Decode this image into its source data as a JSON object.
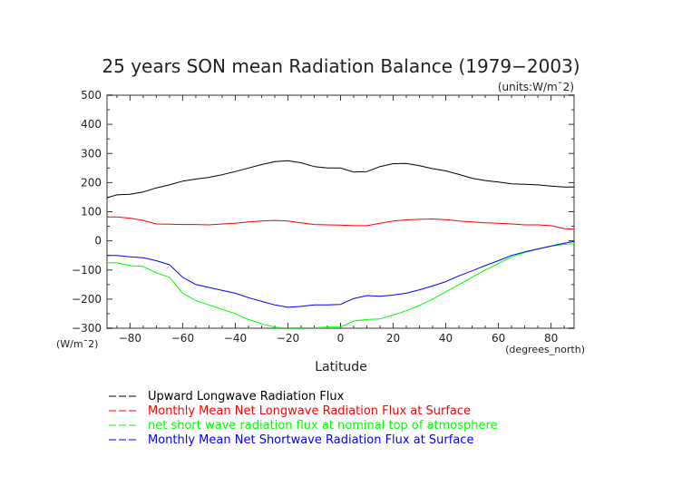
{
  "chart_data": {
    "type": "line",
    "title": "25 years SON mean Radiation Balance (1979−2003)",
    "units_label": "(units:W/m¯2)",
    "xlabel": "Latitude",
    "x_units": "(degrees_north)",
    "y_units": "(W/m¯2)",
    "xlim": [
      -88.75,
      88.75
    ],
    "ylim": [
      -300,
      500
    ],
    "x_ticks": [
      -80,
      -60,
      -40,
      -20,
      0,
      20,
      40,
      60,
      80
    ],
    "x_tick_labels": [
      "−80",
      "−60",
      "−40",
      "−20",
      "0",
      "20",
      "40",
      "60",
      "80"
    ],
    "y_ticks": [
      -300,
      -200,
      -100,
      0,
      100,
      200,
      300,
      400,
      500
    ],
    "y_tick_labels": [
      "−300",
      "−200",
      "−100",
      "0",
      "100",
      "200",
      "300",
      "400",
      "500"
    ],
    "grid": false,
    "legend_position": "bottom",
    "x": [
      -88.75,
      -85,
      -80,
      -75,
      -70,
      -65,
      -60,
      -55,
      -50,
      -45,
      -40,
      -35,
      -30,
      -25,
      -20,
      -15,
      -10,
      -5,
      0,
      5,
      10,
      15,
      20,
      25,
      30,
      35,
      40,
      45,
      50,
      55,
      60,
      65,
      70,
      75,
      80,
      85,
      88.75
    ],
    "series": [
      {
        "name": "Upward Longwave Radiation Flux",
        "color": "#000000",
        "values": [
          148,
          158,
          160,
          168,
          182,
          192,
          205,
          212,
          218,
          227,
          238,
          250,
          262,
          272,
          275,
          268,
          255,
          250,
          250,
          236,
          238,
          255,
          265,
          266,
          258,
          248,
          240,
          228,
          215,
          207,
          202,
          196,
          194,
          192,
          188,
          185,
          185
        ]
      },
      {
        "name": "Monthly Mean Net Longwave Radiation Flux at Surface",
        "color": "#ff0000",
        "values": [
          82,
          82,
          78,
          70,
          58,
          57,
          56,
          56,
          55,
          58,
          60,
          65,
          68,
          70,
          68,
          62,
          56,
          55,
          54,
          52,
          52,
          60,
          68,
          72,
          74,
          75,
          73,
          68,
          65,
          62,
          60,
          58,
          55,
          55,
          52,
          42,
          40
        ]
      },
      {
        "name": "net short wave radiation flux at nominal top of atmosphere",
        "color": "#00ff00",
        "values": [
          -75,
          -75,
          -85,
          -88,
          -110,
          -125,
          -180,
          -205,
          -220,
          -235,
          -250,
          -270,
          -285,
          -296,
          -302,
          -300,
          -298,
          -296,
          -296,
          -275,
          -270,
          -268,
          -255,
          -240,
          -222,
          -200,
          -175,
          -150,
          -125,
          -100,
          -78,
          -55,
          -40,
          -28,
          -18,
          -12,
          -10
        ]
      },
      {
        "name": "Monthly Mean Net Shortwave Radiation Flux at Surface",
        "color": "#0000ff",
        "values": [
          -50,
          -50,
          -55,
          -58,
          -68,
          -82,
          -125,
          -150,
          -160,
          -170,
          -180,
          -195,
          -208,
          -220,
          -228,
          -225,
          -220,
          -220,
          -218,
          -198,
          -188,
          -190,
          -186,
          -180,
          -168,
          -155,
          -140,
          -120,
          -103,
          -85,
          -68,
          -50,
          -38,
          -28,
          -18,
          -8,
          -2
        ]
      }
    ]
  }
}
